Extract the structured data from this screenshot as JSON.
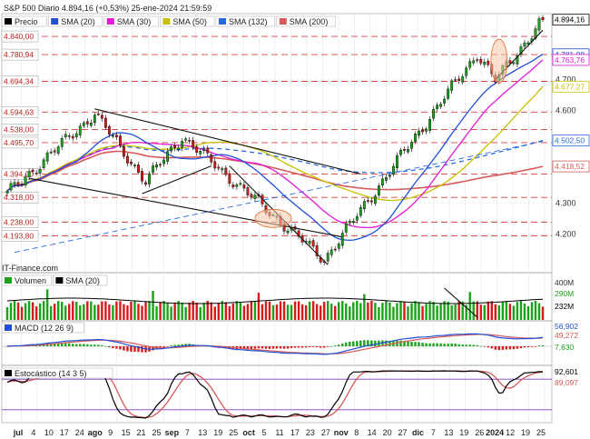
{
  "header": {
    "title": "S&P 500 Diario 4.894,16 (+0,53%) 25-ene-2024 21:59:59"
  },
  "watermark": "IT-Finance.com",
  "colors": {
    "sma20": "#1f4fd6",
    "sma30": "#e21ad8",
    "sma50": "#c8c000",
    "sma132": "#2a6ae0",
    "sma200": "#d65a5a",
    "up": "#1aa31a",
    "down": "#d61a1a",
    "dash": "#d84040",
    "trend": "#111111"
  },
  "price_panel": {
    "legend": [
      {
        "label": "Precio",
        "color": "#000000"
      },
      {
        "label": "SMA (20)",
        "color": "#1f4fd6"
      },
      {
        "label": "SMA (30)",
        "color": "#e21ad8"
      },
      {
        "label": "SMA (50)",
        "color": "#c8c000"
      },
      {
        "label": "SMA (132)",
        "color": "#2a6ae0"
      },
      {
        "label": "SMA (200)",
        "color": "#d65a5a"
      }
    ],
    "level_labels": [
      "4.840,00",
      "4.780,94",
      "4.694,34",
      "4.594,63",
      "4.538,00",
      "4.495,70",
      "4.394,00",
      "4.318,00",
      "4.238,00",
      "4.193,80"
    ],
    "level_values": [
      4840,
      4780.94,
      4694.34,
      4594.63,
      4538,
      4495.7,
      4394,
      4318,
      4238,
      4193.8
    ],
    "right_ticks": [
      "4.700",
      "4.600",
      "4.300",
      "4.200"
    ],
    "right_tick_values": [
      4700,
      4600,
      4300,
      4200
    ],
    "right_badges": [
      {
        "text": "4.894,16",
        "value": 4894.16,
        "color": "#000000"
      },
      {
        "text": "4.781,98",
        "value": 4781.98,
        "color": "#1f4fd6"
      },
      {
        "text": "4.763,76",
        "value": 4763.76,
        "color": "#e21ad8"
      },
      {
        "text": "4.677,27",
        "value": 4677.27,
        "color": "#c8c000"
      },
      {
        "text": "4.502,50",
        "value": 4502.5,
        "color": "#2a6ae0"
      },
      {
        "text": "4.418,52",
        "value": 4418.52,
        "color": "#d65a5a"
      }
    ]
  },
  "volume_panel": {
    "legend": [
      {
        "label": "Volumen",
        "color": "#1aa31a"
      },
      {
        "label": "SMA (20)",
        "color": "#000000"
      }
    ],
    "right_ticks": [
      "400M",
      "290M",
      "232M"
    ]
  },
  "macd_panel": {
    "legend": [
      {
        "label": "MACD (12 26 9)",
        "color": "#1f4fd6"
      }
    ],
    "right_ticks": [
      "56,902",
      "49,272",
      "7,630"
    ]
  },
  "stoch_panel": {
    "legend": [
      {
        "label": "Estocástico (14 3 5)",
        "color": "#000000"
      }
    ],
    "right_ticks": [
      "92,601",
      "89,097"
    ]
  },
  "x_axis": {
    "labels": [
      "jul",
      "4",
      "10",
      "17",
      "24",
      "ago",
      "9",
      "15",
      "21",
      "25",
      "sep",
      "7",
      "13",
      "19",
      "25",
      "oct",
      "5",
      "11",
      "17",
      "23",
      "27",
      "nov",
      "8",
      "14",
      "20",
      "27",
      "dic",
      "7",
      "13",
      "19",
      "26",
      "2024",
      "12",
      "19",
      "25"
    ]
  },
  "chart_data": {
    "type": "candlestick",
    "title": "S&P 500 Diario 4.894,16 (+0,53%) 25-ene-2024 21:59:59",
    "close_segments": [
      {
        "from": "2023-06-26",
        "to": "2023-07-31",
        "start": 4330,
        "end": 4590
      },
      {
        "from": "2023-07-31",
        "to": "2023-08-18",
        "start": 4590,
        "end": 4370
      },
      {
        "from": "2023-08-18",
        "to": "2023-09-01",
        "start": 4370,
        "end": 4515
      },
      {
        "from": "2023-09-01",
        "to": "2023-10-27",
        "start": 4515,
        "end": 4117
      },
      {
        "from": "2023-10-27",
        "to": "2023-12-28",
        "start": 4117,
        "end": 4785
      },
      {
        "from": "2023-12-28",
        "to": "2024-01-05",
        "start": 4785,
        "end": 4697
      },
      {
        "from": "2024-01-05",
        "to": "2024-01-25",
        "start": 4697,
        "end": 4894.16
      }
    ],
    "last_close": 4894.16,
    "change_pct": 0.53,
    "sma_last": {
      "SMA (20)": 4781.98,
      "SMA (30)": 4763.76,
      "SMA (50)": 4677.27,
      "SMA (132)": 4502.5,
      "SMA (200)": 4418.52
    },
    "y_range": [
      4080,
      4905
    ],
    "indicators": {
      "volume": {
        "SMA (20)": "232M",
        "last": "290M"
      },
      "macd": {
        "macd": 56.902,
        "signal": 49.272,
        "hist": 7.63
      },
      "stochastic": {
        "k": 92.601,
        "d": 89.097
      }
    }
  }
}
